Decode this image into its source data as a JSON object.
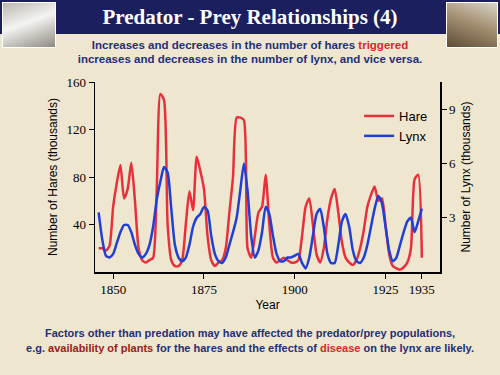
{
  "chart_data": {
    "type": "line",
    "title": "Predator - Prey Relationships (4)",
    "subtitle": [
      [
        {
          "text": "Increases and decreases in the number of hares ",
          "color": "#1f2f7a"
        },
        {
          "text": "triggered",
          "color": "#d8262c"
        }
      ],
      [
        {
          "text": "increases and decreases in the number of lynx, and vice versa.",
          "color": "#1f2f7a"
        }
      ]
    ],
    "footnote": [
      [
        {
          "text": "Factors other than predation may have affected the predator/prey populations,",
          "color": "#1f2f7a"
        }
      ],
      [
        {
          "text": "e.g. ",
          "color": "#1f2f7a"
        },
        {
          "text": "availability of plants",
          "color": "#9b1a1a"
        },
        {
          "text": " for the hares and the effects of ",
          "color": "#1f2f7a"
        },
        {
          "text": "disease",
          "color": "#d8262c"
        },
        {
          "text": " on the lynx are likely.",
          "color": "#1f2f7a"
        }
      ]
    ],
    "x_label": "Year",
    "y_label": "Number of Hares (thousands)",
    "y2_label": "Number of Lynx (thousands)",
    "x": [
      1846,
      1847,
      1848,
      1849,
      1850,
      1851,
      1852,
      1853,
      1854,
      1855,
      1856,
      1857,
      1858,
      1859,
      1860,
      1861,
      1862,
      1863,
      1864,
      1865,
      1866,
      1867,
      1868,
      1869,
      1870,
      1871,
      1872,
      1873,
      1874,
      1875,
      1876,
      1877,
      1878,
      1879,
      1880,
      1881,
      1882,
      1883,
      1884,
      1885,
      1886,
      1887,
      1888,
      1889,
      1890,
      1891,
      1892,
      1893,
      1894,
      1895,
      1896,
      1897,
      1898,
      1899,
      1900,
      1901,
      1902,
      1903,
      1904,
      1905,
      1906,
      1907,
      1908,
      1909,
      1910,
      1911,
      1912,
      1913,
      1914,
      1915,
      1916,
      1917,
      1918,
      1919,
      1920,
      1921,
      1922,
      1923,
      1924,
      1925,
      1926,
      1927,
      1928,
      1929,
      1930,
      1931,
      1932,
      1933,
      1934,
      1935
    ],
    "series": [
      {
        "name": "Hare",
        "color": "#e8303a",
        "values": [
          20,
          20,
          18,
          22,
          55,
          75,
          90,
          62,
          70,
          92,
          60,
          20,
          10,
          8,
          10,
          12,
          70,
          150,
          145,
          40,
          10,
          5,
          5,
          10,
          40,
          68,
          52,
          97,
          85,
          70,
          30,
          10,
          5,
          8,
          10,
          20,
          50,
          80,
          130,
          130,
          128,
          20,
          12,
          30,
          50,
          55,
          82,
          40,
          12,
          8,
          10,
          12,
          10,
          8,
          8,
          10,
          30,
          55,
          62,
          40,
          15,
          8,
          20,
          45,
          62,
          70,
          50,
          25,
          12,
          8,
          6,
          10,
          20,
          35,
          55,
          65,
          72,
          60,
          62,
          40,
          15,
          5,
          3,
          2,
          4,
          8,
          20,
          78,
          82,
          12
        ]
      },
      {
        "name": "Lynx",
        "color": "#1f3fd6",
        "axis": "y2",
        "values": [
          3.3,
          1.8,
          0.9,
          0.8,
          1.0,
          1.6,
          2.2,
          2.6,
          2.6,
          2.2,
          1.5,
          1.0,
          0.8,
          1.0,
          1.5,
          2.5,
          4.0,
          5.0,
          5.8,
          5.5,
          3.5,
          1.5,
          0.8,
          0.6,
          0.8,
          1.5,
          2.5,
          3.0,
          3.2,
          3.6,
          3.4,
          2.0,
          1.0,
          0.6,
          0.5,
          0.8,
          1.5,
          2.2,
          3.0,
          4.5,
          6.0,
          4.5,
          2.0,
          0.8,
          1.2,
          2.2,
          3.6,
          3.2,
          2.0,
          1.0,
          0.6,
          0.6,
          0.8,
          0.8,
          0.9,
          1.0,
          0.5,
          0.2,
          0.8,
          2.0,
          3.2,
          3.5,
          2.5,
          1.0,
          0.5,
          0.5,
          1.5,
          2.8,
          3.2,
          2.5,
          1.2,
          0.6,
          0.5,
          0.8,
          1.5,
          2.5,
          3.5,
          4.2,
          3.8,
          2.5,
          1.2,
          0.6,
          0.8,
          1.5,
          2.2,
          2.8,
          3.0,
          2.2,
          2.8,
          3.5
        ]
      }
    ],
    "xlim": [
      1845,
      1940
    ],
    "xticks": [
      1850,
      1875,
      1900,
      1925,
      1935
    ],
    "ylim": [
      0,
      160
    ],
    "yticks": [
      40,
      80,
      120,
      160
    ],
    "y2lim": [
      0,
      10.5
    ],
    "y2ticks": [
      3,
      6,
      9
    ],
    "grid": false,
    "legend": "top right"
  }
}
